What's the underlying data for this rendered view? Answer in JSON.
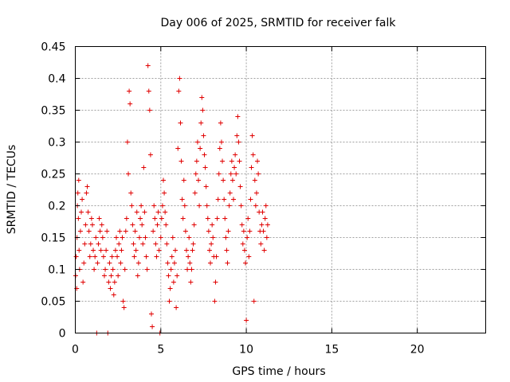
{
  "chart_data": {
    "type": "scatter",
    "title": "Day 006 of 2025, SRMTID for receiver falk",
    "xlabel": "GPS time / hours",
    "ylabel": "SRMTID / TECUs",
    "xlim": [
      0,
      24
    ],
    "ylim": [
      0,
      0.45
    ],
    "x_ticks": [
      "0",
      "5",
      "10",
      "15",
      "20"
    ],
    "y_ticks": [
      "0",
      "0.05",
      "0.1",
      "0.15",
      "0.2",
      "0.25",
      "0.3",
      "0.35",
      "0.4",
      "0.45"
    ],
    "grid": true,
    "marker": "+",
    "color": "#e00000",
    "series": [
      {
        "values": [
          [
            0.02,
            0.09
          ],
          [
            0.05,
            0.12
          ],
          [
            0.08,
            0.07
          ],
          [
            0.1,
            0.15
          ],
          [
            0.12,
            0.2
          ],
          [
            0.15,
            0.22
          ],
          [
            0.18,
            0.18
          ],
          [
            0.2,
            0.24
          ],
          [
            0.22,
            0.13
          ],
          [
            0.25,
            0.1
          ],
          [
            0.3,
            0.16
          ],
          [
            0.35,
            0.19
          ],
          [
            0.4,
            0.21
          ],
          [
            0.45,
            0.08
          ],
          [
            0.5,
            0.11
          ],
          [
            0.55,
            0.14
          ],
          [
            0.6,
            0.17
          ],
          [
            0.65,
            0.22
          ],
          [
            0.7,
            0.23
          ],
          [
            0.75,
            0.19
          ],
          [
            0.8,
            0.16
          ],
          [
            0.85,
            0.12
          ],
          [
            0.9,
            0.14
          ],
          [
            0.95,
            0.18
          ],
          [
            1.0,
            0.17
          ],
          [
            1.05,
            0.13
          ],
          [
            1.1,
            0.1
          ],
          [
            1.15,
            0.12
          ],
          [
            1.2,
            0.15
          ],
          [
            1.25,
            0.0
          ],
          [
            1.3,
            0.11
          ],
          [
            1.35,
            0.14
          ],
          [
            1.4,
            0.18
          ],
          [
            1.45,
            0.16
          ],
          [
            1.5,
            0.13
          ],
          [
            1.55,
            0.17
          ],
          [
            1.6,
            0.15
          ],
          [
            1.65,
            0.12
          ],
          [
            1.7,
            0.09
          ],
          [
            1.75,
            0.1
          ],
          [
            1.8,
            0.13
          ],
          [
            1.85,
            0.16
          ],
          [
            1.9,
            0.0
          ],
          [
            1.95,
            0.08
          ],
          [
            2.0,
            0.11
          ],
          [
            2.05,
            0.07
          ],
          [
            2.1,
            0.09
          ],
          [
            2.15,
            0.12
          ],
          [
            2.2,
            0.1
          ],
          [
            2.25,
            0.06
          ],
          [
            2.3,
            0.08
          ],
          [
            2.35,
            0.13
          ],
          [
            2.4,
            0.15
          ],
          [
            2.45,
            0.12
          ],
          [
            2.5,
            0.09
          ],
          [
            2.55,
            0.14
          ],
          [
            2.6,
            0.16
          ],
          [
            2.65,
            0.11
          ],
          [
            2.7,
            0.13
          ],
          [
            2.75,
            0.15
          ],
          [
            2.8,
            0.05
          ],
          [
            2.85,
            0.04
          ],
          [
            2.9,
            0.1
          ],
          [
            2.95,
            0.16
          ],
          [
            3.0,
            0.18
          ],
          [
            3.05,
            0.3
          ],
          [
            3.1,
            0.25
          ],
          [
            3.15,
            0.38
          ],
          [
            3.2,
            0.36
          ],
          [
            3.25,
            0.22
          ],
          [
            3.3,
            0.2
          ],
          [
            3.35,
            0.17
          ],
          [
            3.4,
            0.14
          ],
          [
            3.45,
            0.12
          ],
          [
            3.5,
            0.16
          ],
          [
            3.55,
            0.13
          ],
          [
            3.6,
            0.19
          ],
          [
            3.65,
            0.09
          ],
          [
            3.7,
            0.11
          ],
          [
            3.75,
            0.15
          ],
          [
            3.8,
            0.18
          ],
          [
            3.85,
            0.2
          ],
          [
            3.9,
            0.17
          ],
          [
            3.95,
            0.14
          ],
          [
            4.0,
            0.26
          ],
          [
            4.05,
            0.19
          ],
          [
            4.1,
            0.15
          ],
          [
            4.15,
            0.12
          ],
          [
            4.2,
            0.1
          ],
          [
            4.25,
            0.42
          ],
          [
            4.3,
            0.38
          ],
          [
            4.35,
            0.35
          ],
          [
            4.4,
            0.28
          ],
          [
            4.45,
            0.03
          ],
          [
            4.5,
            0.01
          ],
          [
            4.55,
            0.16
          ],
          [
            4.6,
            0.2
          ],
          [
            4.65,
            0.18
          ],
          [
            4.7,
            0.14
          ],
          [
            4.75,
            0.12
          ],
          [
            4.8,
            0.17
          ],
          [
            4.85,
            0.19
          ],
          [
            4.9,
            0.13
          ],
          [
            4.95,
            0.0
          ],
          [
            5.0,
            0.15
          ],
          [
            5.05,
            0.18
          ],
          [
            5.1,
            0.2
          ],
          [
            5.15,
            0.24
          ],
          [
            5.2,
            0.22
          ],
          [
            5.25,
            0.19
          ],
          [
            5.3,
            0.17
          ],
          [
            5.35,
            0.14
          ],
          [
            5.4,
            0.11
          ],
          [
            5.45,
            0.09
          ],
          [
            5.5,
            0.05
          ],
          [
            5.55,
            0.07
          ],
          [
            5.6,
            0.1
          ],
          [
            5.65,
            0.12
          ],
          [
            5.7,
            0.15
          ],
          [
            5.75,
            0.08
          ],
          [
            5.8,
            0.11
          ],
          [
            5.85,
            0.13
          ],
          [
            5.9,
            0.04
          ],
          [
            5.95,
            0.09
          ],
          [
            6.0,
            0.29
          ],
          [
            6.05,
            0.38
          ],
          [
            6.1,
            0.4
          ],
          [
            6.15,
            0.33
          ],
          [
            6.2,
            0.27
          ],
          [
            6.25,
            0.21
          ],
          [
            6.3,
            0.18
          ],
          [
            6.35,
            0.24
          ],
          [
            6.4,
            0.2
          ],
          [
            6.45,
            0.16
          ],
          [
            6.5,
            0.13
          ],
          [
            6.55,
            0.1
          ],
          [
            6.6,
            0.12
          ],
          [
            6.65,
            0.15
          ],
          [
            6.7,
            0.11
          ],
          [
            6.75,
            0.08
          ],
          [
            6.8,
            0.1
          ],
          [
            6.85,
            0.13
          ],
          [
            6.9,
            0.14
          ],
          [
            6.95,
            0.17
          ],
          [
            7.0,
            0.22
          ],
          [
            7.05,
            0.25
          ],
          [
            7.1,
            0.27
          ],
          [
            7.15,
            0.3
          ],
          [
            7.2,
            0.24
          ],
          [
            7.25,
            0.2
          ],
          [
            7.3,
            0.29
          ],
          [
            7.35,
            0.33
          ],
          [
            7.4,
            0.37
          ],
          [
            7.45,
            0.35
          ],
          [
            7.5,
            0.31
          ],
          [
            7.55,
            0.28
          ],
          [
            7.6,
            0.26
          ],
          [
            7.65,
            0.23
          ],
          [
            7.7,
            0.2
          ],
          [
            7.75,
            0.18
          ],
          [
            7.8,
            0.16
          ],
          [
            7.85,
            0.13
          ],
          [
            7.9,
            0.11
          ],
          [
            7.95,
            0.14
          ],
          [
            8.0,
            0.17
          ],
          [
            8.05,
            0.15
          ],
          [
            8.1,
            0.12
          ],
          [
            8.15,
            0.05
          ],
          [
            8.2,
            0.08
          ],
          [
            8.25,
            0.12
          ],
          [
            8.3,
            0.18
          ],
          [
            8.35,
            0.21
          ],
          [
            8.4,
            0.25
          ],
          [
            8.45,
            0.29
          ],
          [
            8.5,
            0.33
          ],
          [
            8.55,
            0.3
          ],
          [
            8.6,
            0.27
          ],
          [
            8.65,
            0.24
          ],
          [
            8.7,
            0.21
          ],
          [
            8.75,
            0.18
          ],
          [
            8.8,
            0.15
          ],
          [
            8.85,
            0.13
          ],
          [
            8.9,
            0.11
          ],
          [
            8.95,
            0.16
          ],
          [
            9.0,
            0.2
          ],
          [
            9.05,
            0.22
          ],
          [
            9.1,
            0.25
          ],
          [
            9.15,
            0.27
          ],
          [
            9.2,
            0.24
          ],
          [
            9.25,
            0.21
          ],
          [
            9.3,
            0.26
          ],
          [
            9.35,
            0.28
          ],
          [
            9.4,
            0.25
          ],
          [
            9.45,
            0.31
          ],
          [
            9.5,
            0.34
          ],
          [
            9.55,
            0.3
          ],
          [
            9.6,
            0.27
          ],
          [
            9.65,
            0.23
          ],
          [
            9.7,
            0.2
          ],
          [
            9.75,
            0.17
          ],
          [
            9.8,
            0.14
          ],
          [
            9.85,
            0.16
          ],
          [
            9.9,
            0.13
          ],
          [
            9.95,
            0.11
          ],
          [
            10.0,
            0.02
          ],
          [
            10.05,
            0.15
          ],
          [
            10.1,
            0.18
          ],
          [
            10.15,
            0.12
          ],
          [
            10.2,
            0.16
          ],
          [
            10.25,
            0.21
          ],
          [
            10.3,
            0.26
          ],
          [
            10.35,
            0.31
          ],
          [
            10.4,
            0.28
          ],
          [
            10.45,
            0.05
          ],
          [
            10.5,
            0.24
          ],
          [
            10.55,
            0.2
          ],
          [
            10.6,
            0.22
          ],
          [
            10.65,
            0.27
          ],
          [
            10.7,
            0.25
          ],
          [
            10.75,
            0.19
          ],
          [
            10.8,
            0.16
          ],
          [
            10.85,
            0.14
          ],
          [
            10.9,
            0.17
          ],
          [
            10.95,
            0.19
          ],
          [
            11.0,
            0.16
          ],
          [
            11.05,
            0.13
          ],
          [
            11.1,
            0.18
          ],
          [
            11.15,
            0.2
          ],
          [
            11.2,
            0.15
          ],
          [
            11.25,
            0.17
          ]
        ]
      }
    ]
  }
}
